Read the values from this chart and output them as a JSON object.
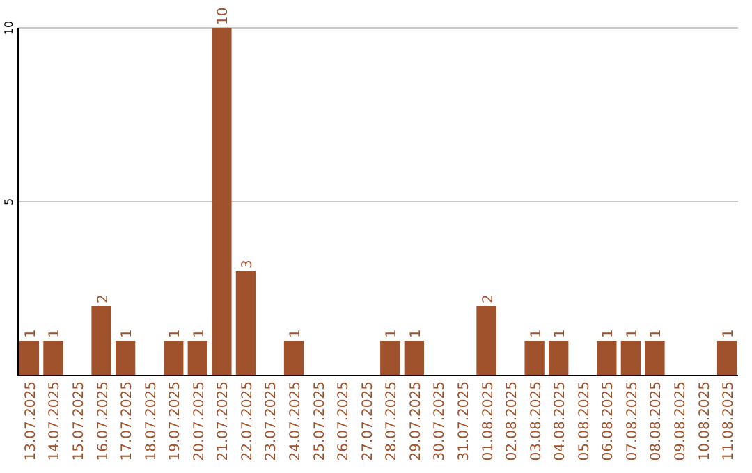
{
  "chart_data": {
    "type": "bar",
    "categories": [
      "13.07.2025",
      "14.07.2025",
      "15.07.2025",
      "16.07.2025",
      "17.07.2025",
      "18.07.2025",
      "19.07.2025",
      "20.07.2025",
      "21.07.2025",
      "22.07.2025",
      "23.07.2025",
      "24.07.2025",
      "25.07.2025",
      "26.07.2025",
      "27.07.2025",
      "28.07.2025",
      "29.07.2025",
      "30.07.2025",
      "31.07.2025",
      "01.08.2025",
      "02.08.2025",
      "03.08.2025",
      "04.08.2025",
      "05.08.2025",
      "06.08.2025",
      "07.08.2025",
      "08.08.2025",
      "09.08.2025",
      "10.08.2025",
      "11.08.2025"
    ],
    "values": [
      1,
      1,
      0,
      2,
      1,
      0,
      1,
      1,
      10,
      3,
      0,
      1,
      0,
      0,
      0,
      1,
      1,
      0,
      0,
      2,
      0,
      1,
      1,
      0,
      1,
      1,
      1,
      0,
      0,
      1
    ],
    "value_labels": [
      "1",
      "1",
      null,
      "2",
      "1",
      null,
      "1",
      "1",
      "10",
      "3",
      null,
      "1",
      null,
      null,
      null,
      "1",
      "1",
      null,
      null,
      "2",
      null,
      "1",
      "1",
      null,
      "1",
      "1",
      "1",
      null,
      null,
      "1"
    ],
    "color": "#a0522d",
    "ylim": [
      0,
      10
    ],
    "yticks": [
      5,
      10
    ],
    "grid": "y"
  }
}
